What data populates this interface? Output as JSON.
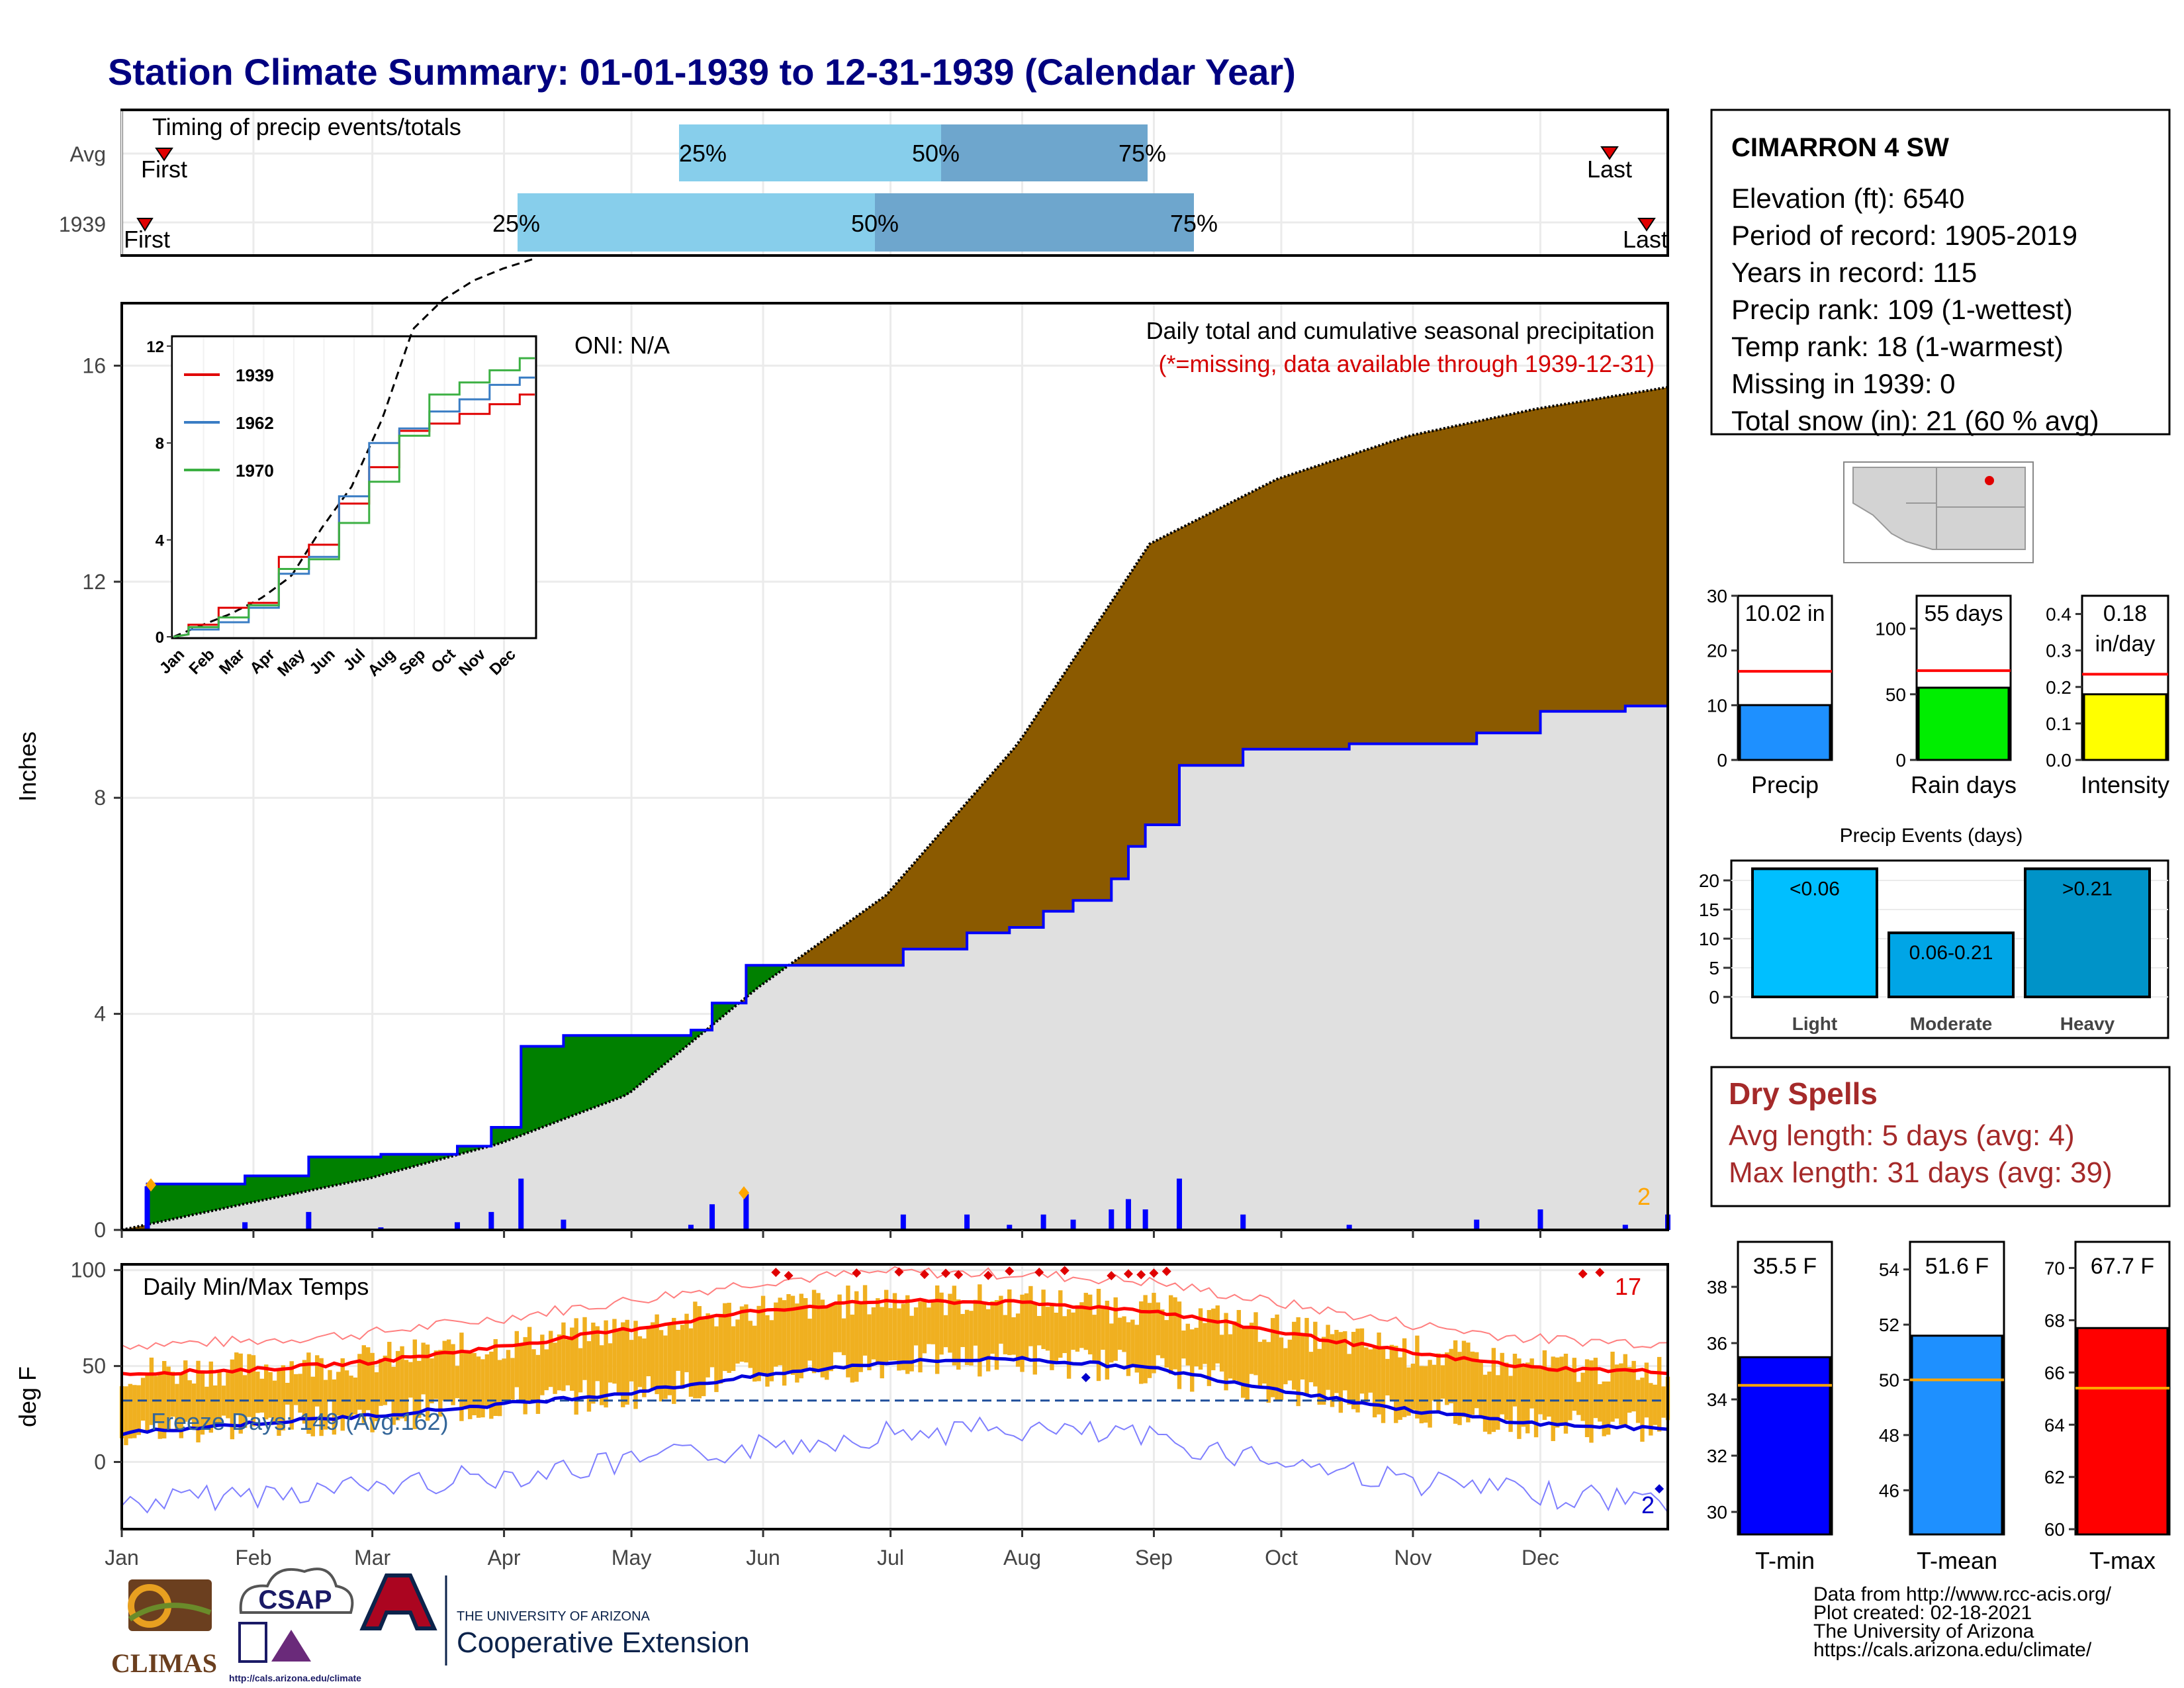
{
  "header": {
    "title": "Station Climate Summary: 01-01-1939 to 12-31-1939 (Calendar Year)"
  },
  "timing_panel": {
    "label": "Timing of precip events/totals",
    "rows": [
      {
        "name": "Avg",
        "p25": "25%",
        "p50": "50%",
        "p75": "75%",
        "first": "First",
        "last": "Last"
      },
      {
        "name": "1939",
        "p25": "25%",
        "p50": "50%",
        "p75": "75%",
        "first": "First",
        "last": "Last"
      }
    ]
  },
  "precip_panel": {
    "ylabel": "Inches",
    "oni": "ONI: N/A",
    "caption": "Daily total and cumulative seasonal precipitation",
    "missing_note": "(*=missing, data available through 1939-12-31)",
    "missing_count": "2",
    "yticks": [
      "0",
      "4",
      "8",
      "12",
      "16"
    ]
  },
  "inset": {
    "legend": [
      "1939",
      "1962",
      "1970"
    ],
    "yticks": [
      "0",
      "4",
      "8",
      "12"
    ],
    "xticks": [
      "Jan",
      "Feb",
      "Mar",
      "Apr",
      "May",
      "Jun",
      "Jul",
      "Aug",
      "Sep",
      "Oct",
      "Nov",
      "Dec"
    ]
  },
  "temp_panel": {
    "ylabel": "deg F",
    "label": "Daily Min/Max Temps",
    "freeze": "Freeze Days: 149 (Avg:162)",
    "record_high_count": "17",
    "record_low_count": "2",
    "yticks": [
      "0",
      "50",
      "100"
    ]
  },
  "months": [
    "Jan",
    "Feb",
    "Mar",
    "Apr",
    "May",
    "Jun",
    "Jul",
    "Aug",
    "Sep",
    "Oct",
    "Nov",
    "Dec"
  ],
  "station": {
    "name": "CIMARRON 4 SW",
    "lines": [
      "Elevation (ft): 6540",
      "Period of record: 1905-2019",
      "Years in record: 115",
      "Precip rank: 109 (1-wettest)",
      "Temp rank: 18 (1-warmest)",
      "Missing in 1939: 0",
      "Total snow (in): 21 (60 % avg)"
    ]
  },
  "summary_bars": {
    "precip": {
      "label": "Precip",
      "value_text": "10.02 in",
      "value": 10.02,
      "avg": 16.2,
      "max": 30,
      "ticks": [
        "0",
        "10",
        "20",
        "30"
      ],
      "color": "#1e90ff"
    },
    "rain_days": {
      "label": "Rain days",
      "value_text": "55 days",
      "value": 55,
      "avg": 68,
      "max": 125,
      "ticks": [
        "0",
        "50",
        "100"
      ],
      "color": "#00ee00"
    },
    "intensity": {
      "label": "Intensity",
      "value_text": "0.18",
      "value_text2": "in/day",
      "value": 0.18,
      "avg": 0.235,
      "max": 0.45,
      "ticks": [
        "0.0",
        "0.1",
        "0.2",
        "0.3",
        "0.4"
      ],
      "color": "#ffff00"
    }
  },
  "precip_events": {
    "title": "Precip Events (days)",
    "ticks": [
      "0",
      "5",
      "10",
      "15",
      "20"
    ],
    "bars": [
      {
        "name": "Light",
        "label": "<0.06",
        "value": 22,
        "color": "#00bfff"
      },
      {
        "name": "Moderate",
        "label": "0.06-0.21",
        "value": 11,
        "color": "#00a5e6"
      },
      {
        "name": "Heavy",
        "label": ">0.21",
        "value": 22,
        "color": "#0093c8"
      }
    ]
  },
  "dry_spells": {
    "title": "Dry Spells",
    "avg_length": "Avg length: 5 days (avg: 4)",
    "max_length": "Max length: 31 days (avg: 39)",
    "color": "#a52a2a"
  },
  "temp_bars": {
    "tmin": {
      "label": "T-min",
      "value_text": "35.5 F",
      "value": 35.5,
      "avg": 34.5,
      "ticks": [
        "30",
        "32",
        "34",
        "36",
        "38"
      ],
      "color": "#0000ff"
    },
    "tmean": {
      "label": "T-mean",
      "value_text": "51.6 F",
      "value": 51.6,
      "avg": 50.0,
      "ticks": [
        "46",
        "48",
        "50",
        "52",
        "54"
      ],
      "color": "#1e90ff"
    },
    "tmax": {
      "label": "T-max",
      "value_text": "67.7 F",
      "value": 67.7,
      "avg": 65.4,
      "ticks": [
        "60",
        "62",
        "64",
        "66",
        "68",
        "70"
      ],
      "color": "#ff0000"
    }
  },
  "footer": {
    "lines": [
      "Data from http://www.rcc-acis.org/",
      "Plot created: 02-18-2021",
      "The University of Arizona",
      "https://cals.arizona.edu/climate/"
    ],
    "logos": {
      "climas": "CLIMAS",
      "csap": "CSAP",
      "csap_url": "http://cals.arizona.edu/climate",
      "ua_small": "THE UNIVERSITY OF ARIZONA",
      "ua_big": "Cooperative Extension"
    }
  },
  "chart_data": [
    {
      "type": "area",
      "title": "Daily total and cumulative seasonal precipitation",
      "ylabel": "Inches",
      "ylim": [
        0,
        17
      ],
      "x_units": "day of year",
      "series": [
        {
          "name": "1939",
          "x": [
            1,
            7,
            30,
            45,
            62,
            80,
            88,
            95,
            105,
            135,
            140,
            148,
            150,
            185,
            200,
            210,
            218,
            225,
            234,
            238,
            242,
            250,
            265,
            290,
            320,
            335,
            355,
            365
          ],
          "values": [
            0,
            0.85,
            1.0,
            1.35,
            1.4,
            1.55,
            1.9,
            3.4,
            3.6,
            3.7,
            4.2,
            4.9,
            4.9,
            5.2,
            5.5,
            5.6,
            5.9,
            6.1,
            6.5,
            7.1,
            7.5,
            8.6,
            8.9,
            9.0,
            9.2,
            9.6,
            9.7,
            10.0
          ]
        },
        {
          "name": "Average",
          "x": [
            1,
            31,
            59,
            90,
            120,
            151,
            181,
            212,
            243,
            273,
            304,
            334,
            365
          ],
          "values": [
            0,
            0.5,
            0.95,
            1.6,
            2.5,
            4.5,
            6.2,
            9.0,
            12.7,
            13.9,
            14.7,
            15.2,
            15.6
          ]
        }
      ]
    },
    {
      "type": "line",
      "title": "",
      "ylim": [
        0,
        17
      ],
      "series": [
        {
          "name": "1939",
          "values": [
            0.5,
            1.2,
            1.4,
            3.3,
            3.8,
            5.5,
            7.0,
            8.5,
            8.8,
            9.2,
            9.6,
            10.0
          ]
        },
        {
          "name": "1962",
          "values": [
            0.3,
            0.6,
            1.2,
            2.6,
            3.3,
            5.8,
            8.0,
            8.6,
            9.3,
            9.8,
            10.4,
            10.7
          ]
        },
        {
          "name": "1970",
          "values": [
            0.4,
            0.8,
            1.3,
            2.8,
            3.2,
            4.7,
            6.4,
            8.3,
            10.0,
            10.5,
            11.0,
            11.5
          ]
        }
      ]
    },
    {
      "type": "line",
      "title": "Daily Min/Max Temps",
      "ylabel": "deg F",
      "ylim": [
        -35,
        103
      ],
      "series": [
        {
          "name": "Avg max",
          "x": [
            1,
            31,
            59,
            90,
            120,
            151,
            181,
            212,
            243,
            273,
            304,
            334,
            365
          ],
          "values": [
            46,
            48,
            52,
            60,
            69,
            79,
            84,
            83,
            79,
            68,
            57,
            49,
            47
          ]
        },
        {
          "name": "Avg min",
          "x": [
            1,
            31,
            59,
            90,
            120,
            151,
            181,
            212,
            243,
            273,
            304,
            334,
            365
          ],
          "values": [
            15,
            20,
            24,
            30,
            36,
            45,
            52,
            54,
            49,
            38,
            27,
            20,
            17
          ]
        }
      ]
    }
  ]
}
